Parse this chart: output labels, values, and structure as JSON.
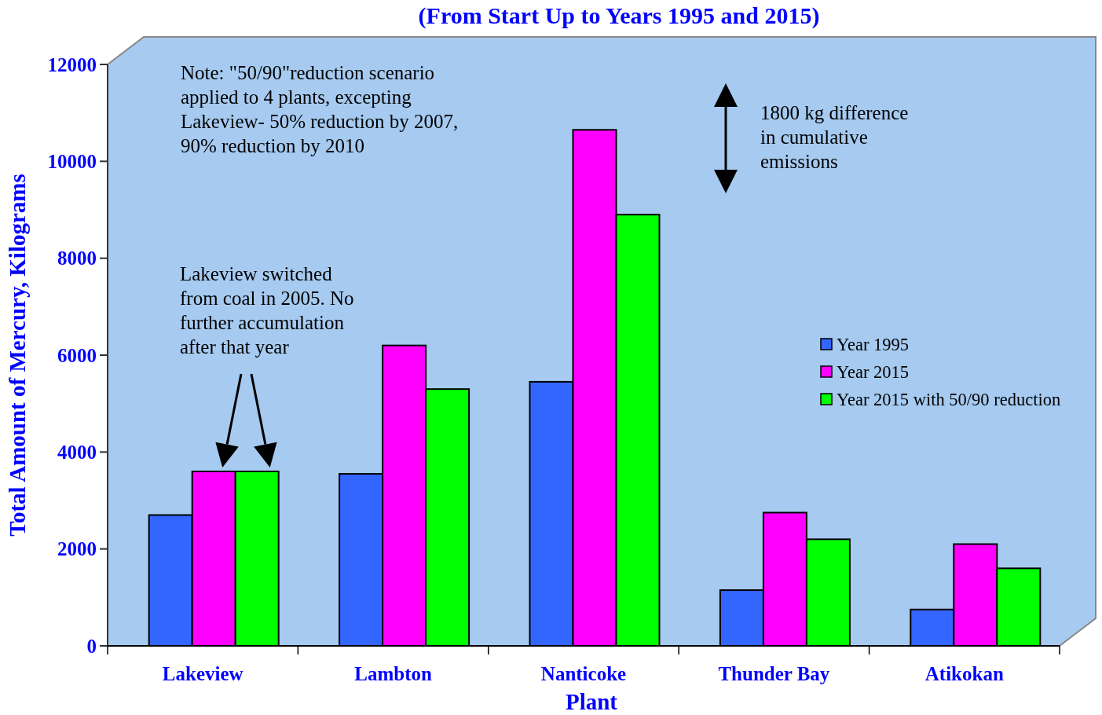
{
  "chart_data": {
    "type": "bar",
    "title": "(From Start Up to Years 1995 and 2015)",
    "xlabel": "Plant",
    "ylabel": "Total Amount of Mercury, Kilograms",
    "categories": [
      "Lakeview",
      "Lambton",
      "Nanticoke",
      "Thunder Bay",
      "Atikokan"
    ],
    "series": [
      {
        "name": "Year 1995",
        "color": "#3366ff",
        "values": [
          2700,
          3550,
          5450,
          1150,
          750
        ]
      },
      {
        "name": "Year 2015",
        "color": "#ff00ff",
        "values": [
          3600,
          6200,
          10650,
          2750,
          2100
        ]
      },
      {
        "name": "Year 2015 with 50/90 reduction",
        "color": "#00ff00",
        "values": [
          3600,
          5300,
          8900,
          2200,
          1600
        ]
      }
    ],
    "ylim": [
      0,
      12000
    ],
    "yticks": [
      0,
      2000,
      4000,
      6000,
      8000,
      10000,
      12000
    ],
    "legend": "right",
    "annotations": [
      "Note: \"50/90\"reduction scenario applied to 4 plants, excepting Lakeview- 50% reduction by 2007, 90% reduction by 2010",
      "Lakeview switched from coal in 2005. No further accumulation after that year",
      "1800 kg difference in cumulative emissions"
    ]
  }
}
